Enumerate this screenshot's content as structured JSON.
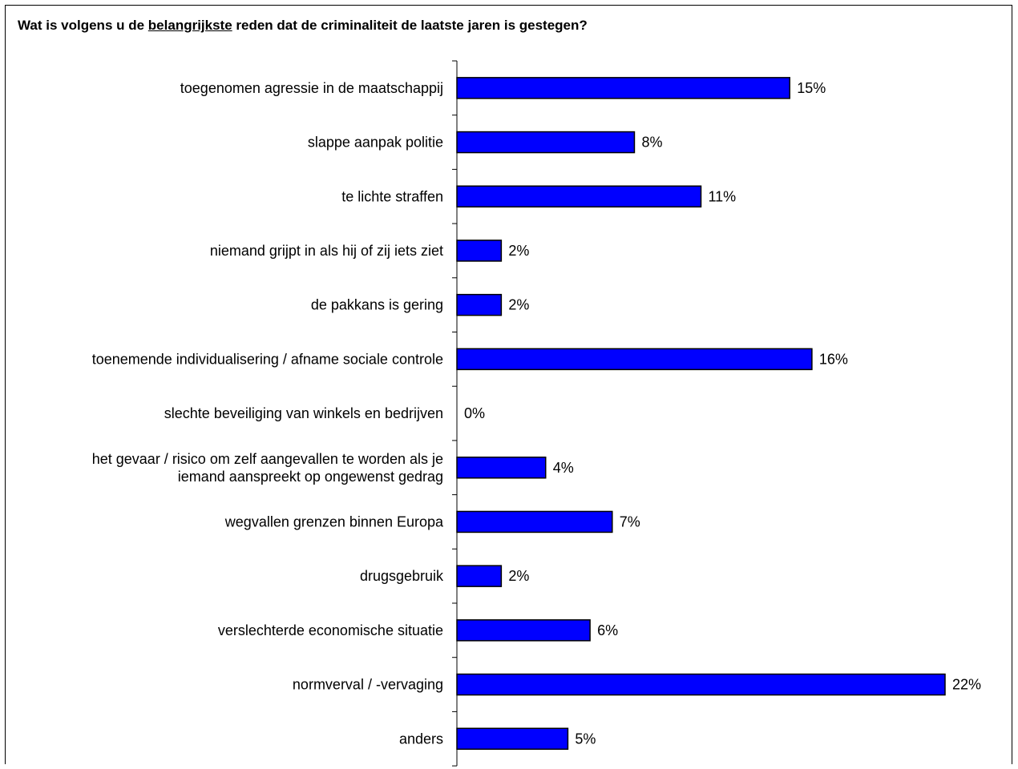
{
  "title": {
    "before": "Wat is volgens u de ",
    "emphasis": "belangrijkste",
    "after": " reden dat de criminaliteit de laatste jaren is gestegen?"
  },
  "chart_data": {
    "type": "bar",
    "orientation": "horizontal",
    "categories": [
      [
        "toegenomen agressie in de maatschappij"
      ],
      [
        "slappe aanpak politie"
      ],
      [
        "te lichte straffen"
      ],
      [
        "niemand grijpt in als hij of zij iets ziet"
      ],
      [
        "de pakkans is gering"
      ],
      [
        "toenemende individualisering / afname sociale controle"
      ],
      [
        "slechte beveiliging van winkels en bedrijven"
      ],
      [
        "het gevaar / risico om zelf aangevallen te worden als je",
        "iemand aanspreekt op ongewenst gedrag"
      ],
      [
        "wegvallen grenzen binnen Europa"
      ],
      [
        "drugsgebruik"
      ],
      [
        "verslechterde economische situatie"
      ],
      [
        "normverval / -vervaging"
      ],
      [
        "anders"
      ]
    ],
    "values": [
      15,
      8,
      11,
      2,
      2,
      16,
      0,
      4,
      7,
      2,
      6,
      22,
      5
    ],
    "value_labels": [
      "15%",
      "8%",
      "11%",
      "2%",
      "2%",
      "16%",
      "0%",
      "4%",
      "7%",
      "2%",
      "6%",
      "22%",
      "5%"
    ],
    "xlim": [
      0,
      22
    ],
    "bar_color": "#0000FF",
    "grid": false,
    "legend": false
  }
}
